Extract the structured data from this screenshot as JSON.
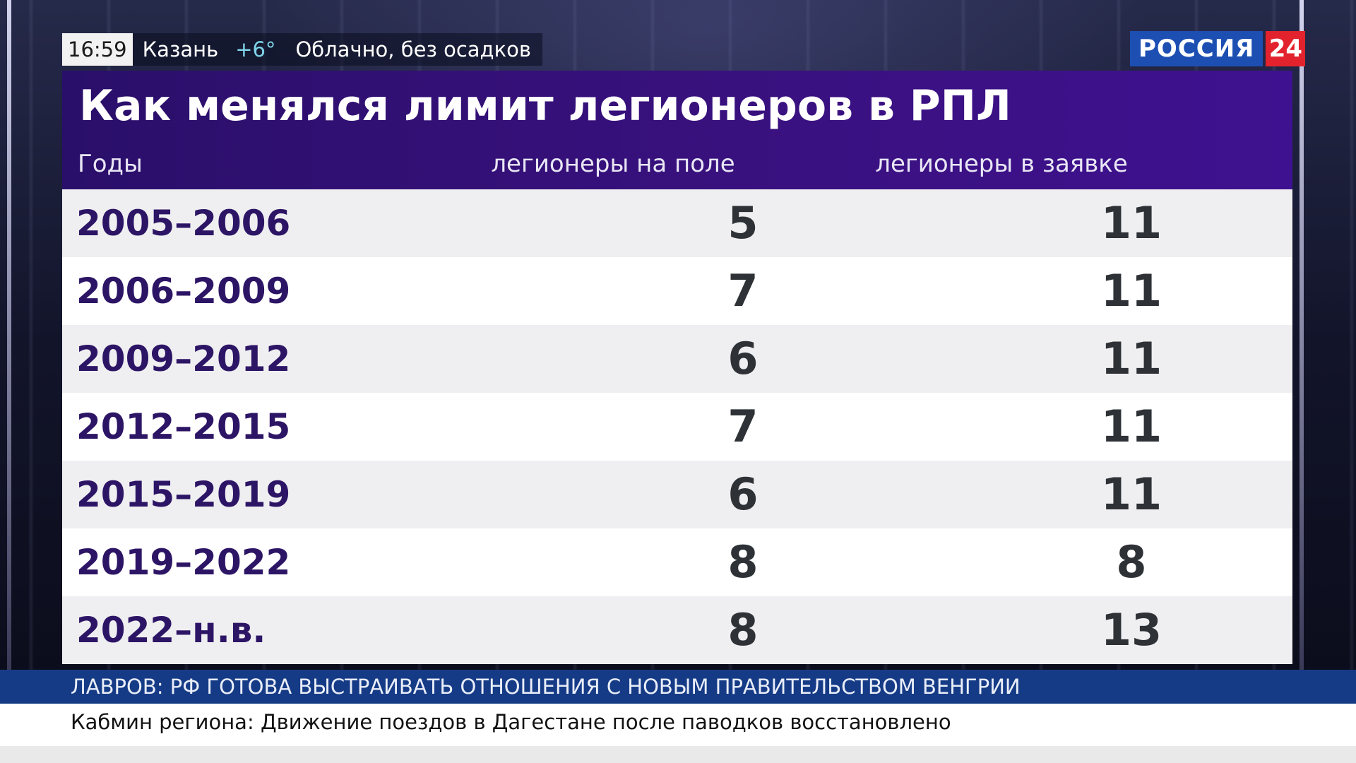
{
  "info_bar": {
    "time": "16:59",
    "city": "Казань",
    "temperature": "+6°",
    "weather": "Облачно, без осадков"
  },
  "logo": {
    "word": "РОССИЯ",
    "number": "24",
    "colors": {
      "word_bg": "#1d4fb3",
      "number_bg": "#e2232d"
    }
  },
  "table": {
    "title": "Как менялся лимит легионеров в РПЛ",
    "columns": [
      "Годы",
      "легионеры на поле",
      "легионеры в заявке"
    ],
    "rows": [
      {
        "years": "2005–2006",
        "on_field": "5",
        "in_squad": "11"
      },
      {
        "years": "2006–2009",
        "on_field": "7",
        "in_squad": "11"
      },
      {
        "years": "2009–2012",
        "on_field": "6",
        "in_squad": "11"
      },
      {
        "years": "2012–2015",
        "on_field": "7",
        "in_squad": "11"
      },
      {
        "years": "2015–2019",
        "on_field": "6",
        "in_squad": "11"
      },
      {
        "years": "2019–2022",
        "on_field": "8",
        "in_squad": "8"
      },
      {
        "years": "2022–н.в.",
        "on_field": "8",
        "in_squad": "13"
      }
    ],
    "colors": {
      "header": "#3a1180",
      "years_text": "#2d1566",
      "numbers_text": "#2e3236"
    }
  },
  "ticker": {
    "headline": "ЛАВРОВ: РФ ГОТОВА ВЫСТРАИВАТЬ ОТНОШЕНИЯ С НОВЫМ ПРАВИТЕЛЬСТВОМ ВЕНГРИИ",
    "news": "Кабмин региона: Движение поездов в Дагестане после паводков восстановлено"
  }
}
